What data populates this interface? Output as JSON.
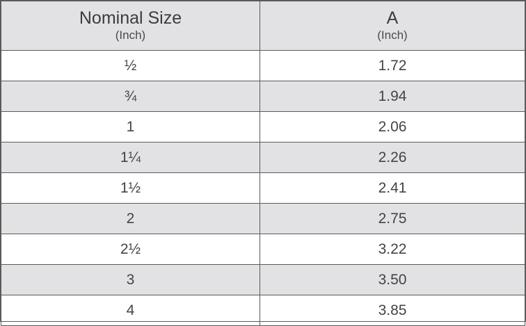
{
  "table": {
    "headers": [
      {
        "main": "Nominal Size",
        "sub": "(Inch)"
      },
      {
        "main": "A",
        "sub": "(Inch)"
      }
    ],
    "rows": [
      [
        "½",
        "1.72"
      ],
      [
        "¾",
        "1.94"
      ],
      [
        "1",
        "2.06"
      ],
      [
        "1¼",
        "2.26"
      ],
      [
        "1½",
        "2.41"
      ],
      [
        "2",
        "2.75"
      ],
      [
        "2½",
        "3.22"
      ],
      [
        "3",
        "3.50"
      ],
      [
        "4",
        "3.85"
      ]
    ]
  },
  "colors": {
    "header_bg": "#e2e2e4",
    "alt_row_bg": "#e2e2e4",
    "border": "#5a5a5a",
    "text": "#444444"
  }
}
